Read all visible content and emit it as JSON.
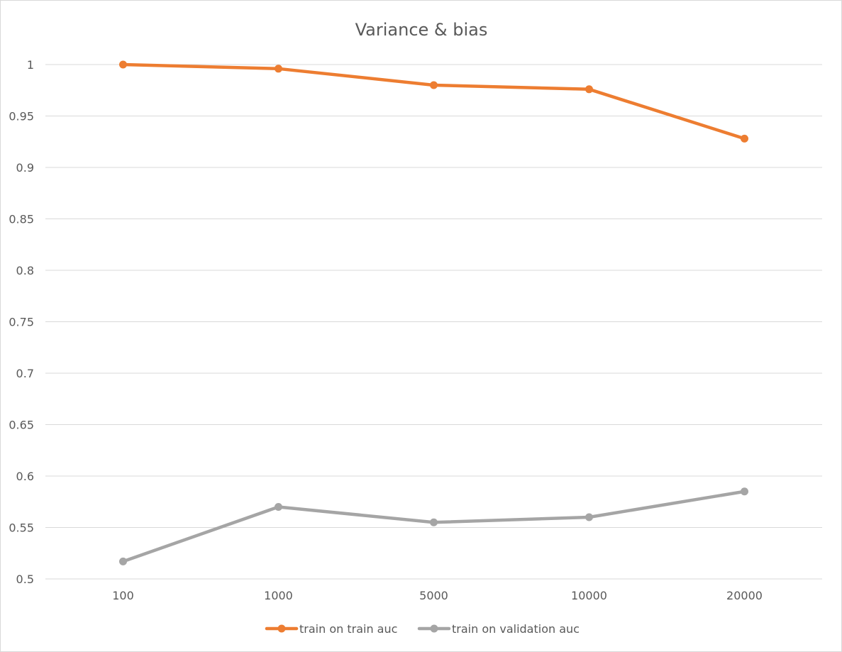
{
  "chart_data": {
    "type": "line",
    "title": "Variance & bias",
    "xlabel": "",
    "ylabel": "",
    "categories": [
      "100",
      "1000",
      "5000",
      "10000",
      "20000"
    ],
    "ylim": [
      0.5,
      1
    ],
    "yticks": [
      "0.5",
      "0.55",
      "0.6",
      "0.65",
      "0.7",
      "0.75",
      "0.8",
      "0.85",
      "0.9",
      "0.95",
      "1"
    ],
    "grid": true,
    "legend_position": "bottom",
    "series": [
      {
        "name": "train on train auc",
        "color": "#ED7D31",
        "values": [
          1.0,
          0.996,
          0.98,
          0.976,
          0.928
        ]
      },
      {
        "name": "train on validation auc",
        "color": "#A5A5A5",
        "values": [
          0.517,
          0.57,
          0.555,
          0.56,
          0.585
        ]
      }
    ]
  }
}
